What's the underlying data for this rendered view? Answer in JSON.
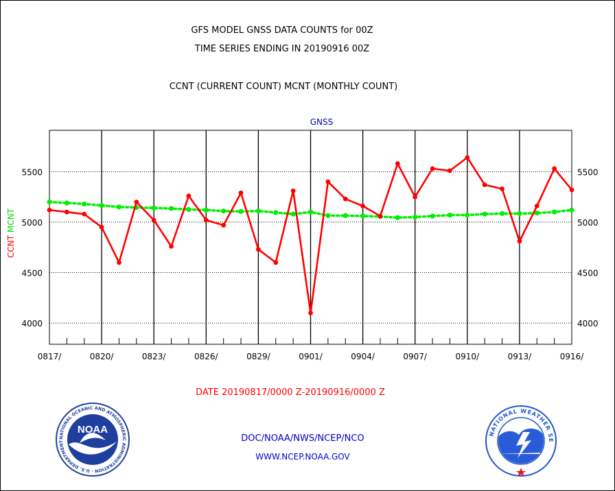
{
  "chart_data": {
    "type": "line",
    "title_lines": [
      "GFS MODEL GNSS DATA COUNTS for 00Z",
      "TIME SERIES ENDING IN 20190916 00Z"
    ],
    "subtitle": "CCNT (CURRENT COUNT) MCNT (MONTHLY COUNT)",
    "panel_label": "GNSS",
    "ylabel_parts": [
      {
        "text": "CCNT",
        "color": "#ff0000"
      },
      {
        "text": "MCNT",
        "color": "#00dd00"
      }
    ],
    "date_range": "DATE 20190817/0000 Z-20190916/0000 Z",
    "y_ticks": [
      4000,
      4500,
      5000,
      5500
    ],
    "ylim": [
      3790,
      5910
    ],
    "x_ticks": [
      "0817/",
      "0820/",
      "0823/",
      "0826/",
      "0829/",
      "0901/",
      "0904/",
      "0907/",
      "0910/",
      "0913/",
      "0916/"
    ],
    "x_tick_day_index": [
      0,
      3,
      6,
      9,
      12,
      15,
      18,
      21,
      24,
      27,
      30
    ],
    "grid": true,
    "series": [
      {
        "name": "CCNT",
        "color": "#ff0000",
        "values": [
          5120,
          5100,
          5080,
          4950,
          4600,
          5200,
          5020,
          4760,
          5260,
          5020,
          4970,
          5290,
          4730,
          4600,
          5310,
          4100,
          5400,
          5230,
          5160,
          5060,
          5580,
          5250,
          5530,
          5510,
          5640,
          5370,
          5330,
          4810,
          5160,
          5530,
          5320
        ]
      },
      {
        "name": "MCNT",
        "color": "#00ee00",
        "values": [
          5200,
          5190,
          5180,
          5165,
          5150,
          5145,
          5140,
          5135,
          5125,
          5120,
          5110,
          5105,
          5110,
          5095,
          5080,
          5100,
          5065,
          5065,
          5060,
          5055,
          5045,
          5050,
          5060,
          5070,
          5070,
          5080,
          5085,
          5085,
          5090,
          5100,
          5120
        ]
      }
    ]
  },
  "footer": {
    "org_line": "DOC/NOAA/NWS/NCEP/NCO",
    "url_line": "WWW.NCEP.NOAA.GOV"
  },
  "logos": {
    "noaa_text": "NOAA",
    "noaa_ring_text": "NATIONAL OCEANIC AND ATMOSPHERIC ADMINISTRATION · U.S. DEPARTMENT OF COMMERCE ·",
    "nws_ring_text": "NATIONAL WEATHER SERVICE"
  },
  "colors": {
    "title": "#000000",
    "date_line": "#ff0000",
    "panel_label": "#0000aa",
    "footer": "#0000cc",
    "noaa_blue": "#1f3f9e",
    "nws_blue": "#2255cc"
  }
}
